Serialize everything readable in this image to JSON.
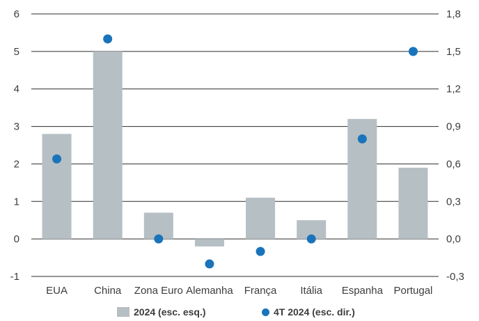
{
  "chart_data": {
    "type": "bar",
    "categories": [
      "EUA",
      "China",
      "Zona Euro",
      "Alemanha",
      "França",
      "Itália",
      "Espanha",
      "Portugal"
    ],
    "series": [
      {
        "name": "2024 (esc. esq.)",
        "type": "bar",
        "axis": "left",
        "color": "#b6bfc3",
        "values": [
          2.8,
          5.0,
          0.7,
          -0.2,
          1.1,
          0.5,
          3.2,
          1.9
        ]
      },
      {
        "name": "4T 2024 (esc. dir.)",
        "type": "scatter",
        "axis": "right",
        "color": "#1a74bb",
        "values": [
          0.64,
          1.6,
          0.0,
          -0.2,
          -0.1,
          0.0,
          0.8,
          1.5
        ]
      }
    ],
    "y_left": {
      "ylim": [
        -1,
        6
      ],
      "ticks": [
        "-1",
        "0",
        "1",
        "2",
        "3",
        "4",
        "5",
        "6"
      ]
    },
    "y_right": {
      "ylim": [
        -0.3,
        1.8
      ],
      "ticks": [
        "-0,3",
        "0,0",
        "0,3",
        "0,6",
        "0,9",
        "1,2",
        "1,5",
        "1,8"
      ]
    },
    "grid": true,
    "legend": "bottom",
    "title": "",
    "xlabel": "",
    "ylabel": ""
  }
}
